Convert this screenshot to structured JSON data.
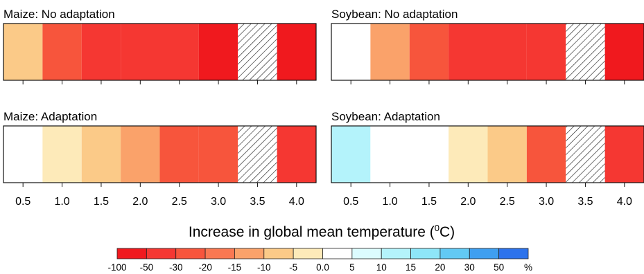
{
  "chart_data": {
    "type": "heatmap",
    "xlabel_main": "Increase in global mean temperature (",
    "xlabel_sup": "0",
    "xlabel_end": "C)",
    "x_ticks": [
      "0.5",
      "1.0",
      "1.5",
      "2.0",
      "2.5",
      "3.0",
      "3.5",
      "4.0"
    ],
    "x_values": [
      0.5,
      1.0,
      1.5,
      2.0,
      2.5,
      3.0,
      3.5,
      4.0
    ],
    "xlim": [
      0.25,
      4.25
    ],
    "panels": [
      {
        "title": "Maize: No adaptation",
        "cells": [
          {
            "x": 0.5,
            "bin": 5
          },
          {
            "x": 1.0,
            "bin": 2
          },
          {
            "x": 1.5,
            "bin": 1
          },
          {
            "x": 2.0,
            "bin": 1
          },
          {
            "x": 2.5,
            "bin": 1
          },
          {
            "x": 3.0,
            "bin": 0
          },
          {
            "x": 3.5,
            "bin": null
          },
          {
            "x": 4.0,
            "bin": 0
          }
        ]
      },
      {
        "title": "Soybean: No adaptation",
        "cells": [
          {
            "x": 0.5,
            "bin": 7
          },
          {
            "x": 1.0,
            "bin": 4
          },
          {
            "x": 1.5,
            "bin": 2
          },
          {
            "x": 2.0,
            "bin": 1
          },
          {
            "x": 2.5,
            "bin": 1
          },
          {
            "x": 3.0,
            "bin": 1
          },
          {
            "x": 3.5,
            "bin": null
          },
          {
            "x": 4.0,
            "bin": 0
          }
        ]
      },
      {
        "title": "Maize: Adaptation",
        "cells": [
          {
            "x": 0.5,
            "bin": 7
          },
          {
            "x": 1.0,
            "bin": 6
          },
          {
            "x": 1.5,
            "bin": 5
          },
          {
            "x": 2.0,
            "bin": 4
          },
          {
            "x": 2.5,
            "bin": 2
          },
          {
            "x": 3.0,
            "bin": 2
          },
          {
            "x": 3.5,
            "bin": null
          },
          {
            "x": 4.0,
            "bin": 1
          }
        ]
      },
      {
        "title": "Soybean: Adaptation",
        "cells": [
          {
            "x": 0.5,
            "bin": 9
          },
          {
            "x": 1.0,
            "bin": 7
          },
          {
            "x": 1.5,
            "bin": 7
          },
          {
            "x": 2.0,
            "bin": 6
          },
          {
            "x": 2.5,
            "bin": 5
          },
          {
            "x": 3.0,
            "bin": 2
          },
          {
            "x": 3.5,
            "bin": null
          },
          {
            "x": 4.0,
            "bin": 1
          }
        ]
      }
    ],
    "colorbar": {
      "labels": [
        "-100",
        "-50",
        "-30",
        "-20",
        "-15",
        "-10",
        "-5",
        "0.0",
        "5",
        "10",
        "15",
        "20",
        "30",
        "50",
        "%"
      ],
      "colors": [
        "#f0191e",
        "#f53732",
        "#f7553c",
        "#f97852",
        "#faa26a",
        "#fbca88",
        "#fdeab9",
        "#ffffff",
        "#dcfcff",
        "#b4f3fb",
        "#8ee6f8",
        "#62c9f4",
        "#3f9ff0",
        "#2d73ec",
        "#1e46e6"
      ]
    },
    "missing_pattern": "hatched"
  }
}
